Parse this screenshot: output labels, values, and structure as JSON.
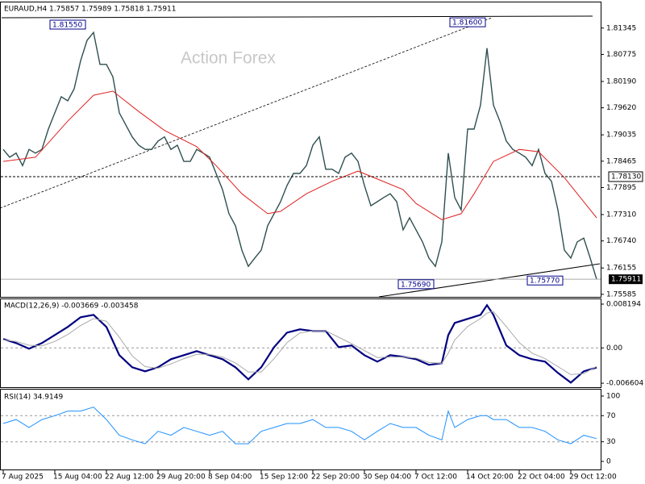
{
  "chart_data": [
    {
      "type": "line",
      "title": "EURAUD,H4  1.75857 1.75989 1.75818 1.75911",
      "watermark": "Action Forex",
      "xlim": [
        0,
        92
      ],
      "xticks": [
        {
          "value": 0,
          "label": "7 Aug 2025"
        },
        {
          "value": 8,
          "label": "15 Aug 04:00"
        },
        {
          "value": 16,
          "label": "22 Aug 12:00"
        },
        {
          "value": 24,
          "label": "29 Aug 20:00"
        },
        {
          "value": 32,
          "label": "8 Sep 04:00"
        },
        {
          "value": 40,
          "label": "15 Sep 12:00"
        },
        {
          "value": 48,
          "label": "22 Sep 20:00"
        },
        {
          "value": 56,
          "label": "30 Sep 04:00"
        },
        {
          "value": 64,
          "label": "7 Oct 12:00"
        },
        {
          "value": 72,
          "label": "14 Oct 20:00"
        },
        {
          "value": 80,
          "label": "22 Oct 04:00"
        },
        {
          "value": 88,
          "label": "29 Oct 12:00"
        }
      ],
      "ylim": [
        1.7553,
        1.8169
      ],
      "yticks": [
        1.81345,
        1.80775,
        {
          "value": 1.8019,
          "label": "1.80190"
        },
        {
          "value": 1.7962,
          "label": "1.79620"
        },
        1.79035,
        1.78465,
        1.77895,
        {
          "value": 1.7731,
          "label": "1.77310"
        },
        {
          "value": 1.7674,
          "label": "1.76740"
        },
        1.76155,
        1.75585
      ],
      "series": [
        {
          "name": "EURAUD",
          "color": "#2f4f4f",
          "values": [
            1.7872,
            1.7855,
            1.7864,
            1.7837,
            1.7872,
            1.7864,
            1.7872,
            1.7916,
            1.7951,
            1.7986,
            1.7977,
            1.8003,
            1.8064,
            1.8108,
            1.8125,
            1.8056,
            1.8056,
            1.8029,
            1.7951,
            1.7925,
            1.7899,
            1.7881,
            1.7872,
            1.7872,
            1.789,
            1.7899,
            1.7872,
            1.7881,
            1.7846,
            1.7846,
            1.7872,
            1.7864,
            1.7855,
            1.782,
            1.7785,
            1.7733,
            1.7707,
            1.7654,
            1.7619,
            1.7637,
            1.7654,
            1.7707,
            1.7733,
            1.7759,
            1.7794,
            1.782,
            1.782,
            1.7837,
            1.7881,
            1.7899,
            1.7829,
            1.7829,
            1.782,
            1.7855,
            1.7864,
            1.7846,
            1.7794,
            1.775,
            1.7759,
            1.7768,
            1.7776,
            1.7759,
            1.7698,
            1.7724,
            1.7698,
            1.7672,
            1.7637,
            1.7619,
            1.7672,
            1.7864,
            1.7768,
            1.7741,
            1.7916,
            1.7916,
            1.7968,
            1.8091,
            1.7968,
            1.7933,
            1.789,
            1.7872,
            1.7864,
            1.7855,
            1.7837,
            1.7872,
            1.782,
            1.7803,
            1.7741,
            1.7654,
            1.7637,
            1.7672,
            1.768,
            1.7637,
            1.7591
          ]
        },
        {
          "name": "MA",
          "color": "#e02020",
          "x": [
            0,
            5,
            10,
            14,
            17,
            21,
            25,
            30,
            33,
            37,
            41,
            43,
            47,
            51,
            55,
            58,
            62,
            64,
            68,
            71,
            73,
            76,
            80,
            83,
            87,
            92
          ],
          "values": [
            1.7846,
            1.7855,
            1.7933,
            1.7989,
            1.7998,
            1.7954,
            1.7913,
            1.7878,
            1.7837,
            1.7776,
            1.7733,
            1.7738,
            1.7776,
            1.7803,
            1.7825,
            1.7808,
            1.7785,
            1.7755,
            1.772,
            1.7733,
            1.7776,
            1.7846,
            1.7872,
            1.7867,
            1.7811,
            1.7724
          ]
        }
      ],
      "annotations": [
        {
          "label": "1.81550",
          "value": 1.8155,
          "x": 13
        },
        {
          "label": "1.81600",
          "value": 1.816,
          "x": 75
        },
        {
          "label": "1.75690",
          "value": 1.7569,
          "x": 67
        },
        {
          "label": "1.75770",
          "value": 1.7577,
          "x": 87
        }
      ],
      "level": {
        "label": "1.78130",
        "value": 1.7813
      },
      "current": {
        "label": "1.75911",
        "value": 1.75911
      }
    },
    {
      "type": "line",
      "title": "MACD(12,26,9) -0.003669 -0.003458",
      "ylim": [
        -0.0075,
        0.0091
      ],
      "yticks": [
        0.008194,
        {
          "value": 0,
          "label": "0.00"
        },
        -0.006604
      ],
      "x": [
        0,
        2,
        4,
        6,
        8,
        10,
        12,
        14,
        16,
        18,
        20,
        22,
        24,
        26,
        28,
        30,
        32,
        34,
        36,
        38,
        40,
        42,
        44,
        46,
        48,
        50,
        52,
        54,
        56,
        58,
        60,
        62,
        64,
        66,
        68,
        69,
        70,
        72,
        74,
        75,
        76,
        78,
        80,
        82,
        84,
        86,
        88,
        90,
        92
      ],
      "series": [
        {
          "name": "MACD",
          "color": "#000080",
          "values": [
            0.00166,
            0.00091,
            -0.00015,
            0.00091,
            0.00242,
            0.00393,
            0.00574,
            0.00619,
            0.00393,
            -0.00136,
            -0.00362,
            -0.00438,
            -0.00362,
            -0.00211,
            -0.00136,
            -0.0006,
            -0.00136,
            -0.00211,
            -0.00362,
            -0.00589,
            -0.00362,
            0.00015,
            0.00287,
            0.00347,
            0.00317,
            0.00317,
            0.00015,
            0.00045,
            -0.00136,
            -0.00257,
            -0.00136,
            -0.00166,
            -0.00211,
            -0.00317,
            -0.00287,
            0.00242,
            0.00468,
            0.00544,
            0.00619,
            0.008,
            0.00619,
            0.00045,
            -0.00136,
            -0.00211,
            -0.00257,
            -0.00468,
            -0.00649,
            -0.00438,
            -0.00367
          ]
        },
        {
          "name": "Signal",
          "color": "#a9a9a9",
          "values": [
            0.0015,
            0.0012,
            0.0005,
            0.0004,
            0.0012,
            0.0025,
            0.0042,
            0.0055,
            0.005,
            0.002,
            -0.0015,
            -0.0035,
            -0.0038,
            -0.003,
            -0.002,
            -0.0012,
            -0.0012,
            -0.0017,
            -0.0028,
            -0.0045,
            -0.0045,
            -0.002,
            0.001,
            0.0028,
            0.0032,
            0.0032,
            0.002,
            0.0008,
            -0.0005,
            -0.0018,
            -0.0017,
            -0.0017,
            -0.0019,
            -0.0027,
            -0.0029,
            -0.001,
            0.0015,
            0.004,
            0.0055,
            0.0065,
            0.0068,
            0.004,
            0.001,
            -0.001,
            -0.002,
            -0.0035,
            -0.005,
            -0.0048,
            -0.00346
          ]
        }
      ]
    },
    {
      "type": "line",
      "title": "RSI(14) 34.9149",
      "ylim": [
        -14.8,
        108.6
      ],
      "yticks": [
        100,
        70,
        30,
        0
      ],
      "x": [
        0,
        2,
        4,
        6,
        8,
        10,
        12,
        14,
        16,
        18,
        20,
        22,
        24,
        26,
        28,
        30,
        32,
        34,
        36,
        38,
        40,
        42,
        44,
        46,
        48,
        50,
        52,
        54,
        56,
        58,
        60,
        62,
        64,
        66,
        68,
        69,
        70,
        72,
        74,
        75,
        76,
        78,
        80,
        82,
        84,
        86,
        88,
        90,
        92
      ],
      "series": [
        {
          "name": "RSI",
          "color": "#1e90ff",
          "values": [
            58,
            64,
            52,
            64,
            70,
            77,
            77,
            83,
            64,
            40,
            33,
            27,
            46,
            40,
            52,
            46,
            40,
            46,
            27,
            27,
            46,
            52,
            58,
            58,
            64,
            52,
            52,
            46,
            33,
            46,
            58,
            52,
            52,
            40,
            33,
            77,
            52,
            64,
            70,
            70,
            64,
            64,
            52,
            52,
            46,
            33,
            27,
            40,
            34.9149
          ]
        }
      ]
    }
  ]
}
